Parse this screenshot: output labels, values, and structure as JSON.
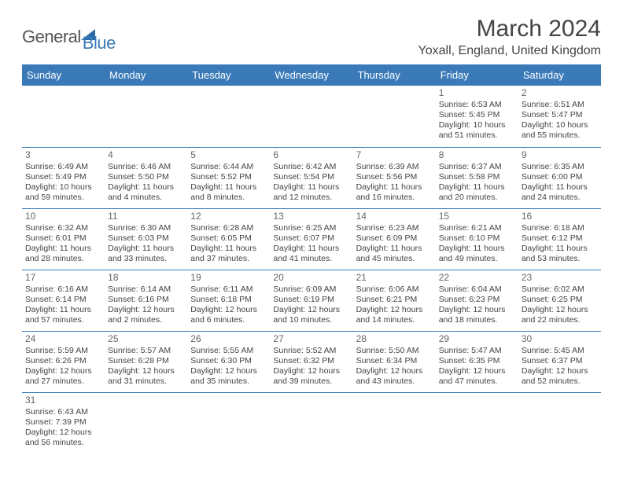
{
  "logo": {
    "part1": "General",
    "part2": "Blue"
  },
  "title": "March 2024",
  "location": "Yoxall, England, United Kingdom",
  "colors": {
    "header_bg": "#3a7ab8",
    "header_text": "#ffffff",
    "border": "#3a7ab8",
    "text": "#444444",
    "logo_gray": "#555555",
    "logo_blue": "#3a7ab8"
  },
  "daysOfWeek": [
    "Sunday",
    "Monday",
    "Tuesday",
    "Wednesday",
    "Thursday",
    "Friday",
    "Saturday"
  ],
  "grid": [
    [
      null,
      null,
      null,
      null,
      null,
      {
        "n": "1",
        "sr": "6:53 AM",
        "ss": "5:45 PM",
        "dh": "10",
        "dm": "51"
      },
      {
        "n": "2",
        "sr": "6:51 AM",
        "ss": "5:47 PM",
        "dh": "10",
        "dm": "55"
      }
    ],
    [
      {
        "n": "3",
        "sr": "6:49 AM",
        "ss": "5:49 PM",
        "dh": "10",
        "dm": "59"
      },
      {
        "n": "4",
        "sr": "6:46 AM",
        "ss": "5:50 PM",
        "dh": "11",
        "dm": "4"
      },
      {
        "n": "5",
        "sr": "6:44 AM",
        "ss": "5:52 PM",
        "dh": "11",
        "dm": "8"
      },
      {
        "n": "6",
        "sr": "6:42 AM",
        "ss": "5:54 PM",
        "dh": "11",
        "dm": "12"
      },
      {
        "n": "7",
        "sr": "6:39 AM",
        "ss": "5:56 PM",
        "dh": "11",
        "dm": "16"
      },
      {
        "n": "8",
        "sr": "6:37 AM",
        "ss": "5:58 PM",
        "dh": "11",
        "dm": "20"
      },
      {
        "n": "9",
        "sr": "6:35 AM",
        "ss": "6:00 PM",
        "dh": "11",
        "dm": "24"
      }
    ],
    [
      {
        "n": "10",
        "sr": "6:32 AM",
        "ss": "6:01 PM",
        "dh": "11",
        "dm": "28"
      },
      {
        "n": "11",
        "sr": "6:30 AM",
        "ss": "6:03 PM",
        "dh": "11",
        "dm": "33"
      },
      {
        "n": "12",
        "sr": "6:28 AM",
        "ss": "6:05 PM",
        "dh": "11",
        "dm": "37"
      },
      {
        "n": "13",
        "sr": "6:25 AM",
        "ss": "6:07 PM",
        "dh": "11",
        "dm": "41"
      },
      {
        "n": "14",
        "sr": "6:23 AM",
        "ss": "6:09 PM",
        "dh": "11",
        "dm": "45"
      },
      {
        "n": "15",
        "sr": "6:21 AM",
        "ss": "6:10 PM",
        "dh": "11",
        "dm": "49"
      },
      {
        "n": "16",
        "sr": "6:18 AM",
        "ss": "6:12 PM",
        "dh": "11",
        "dm": "53"
      }
    ],
    [
      {
        "n": "17",
        "sr": "6:16 AM",
        "ss": "6:14 PM",
        "dh": "11",
        "dm": "57"
      },
      {
        "n": "18",
        "sr": "6:14 AM",
        "ss": "6:16 PM",
        "dh": "12",
        "dm": "2"
      },
      {
        "n": "19",
        "sr": "6:11 AM",
        "ss": "6:18 PM",
        "dh": "12",
        "dm": "6"
      },
      {
        "n": "20",
        "sr": "6:09 AM",
        "ss": "6:19 PM",
        "dh": "12",
        "dm": "10"
      },
      {
        "n": "21",
        "sr": "6:06 AM",
        "ss": "6:21 PM",
        "dh": "12",
        "dm": "14"
      },
      {
        "n": "22",
        "sr": "6:04 AM",
        "ss": "6:23 PM",
        "dh": "12",
        "dm": "18"
      },
      {
        "n": "23",
        "sr": "6:02 AM",
        "ss": "6:25 PM",
        "dh": "12",
        "dm": "22"
      }
    ],
    [
      {
        "n": "24",
        "sr": "5:59 AM",
        "ss": "6:26 PM",
        "dh": "12",
        "dm": "27"
      },
      {
        "n": "25",
        "sr": "5:57 AM",
        "ss": "6:28 PM",
        "dh": "12",
        "dm": "31"
      },
      {
        "n": "26",
        "sr": "5:55 AM",
        "ss": "6:30 PM",
        "dh": "12",
        "dm": "35"
      },
      {
        "n": "27",
        "sr": "5:52 AM",
        "ss": "6:32 PM",
        "dh": "12",
        "dm": "39"
      },
      {
        "n": "28",
        "sr": "5:50 AM",
        "ss": "6:34 PM",
        "dh": "12",
        "dm": "43"
      },
      {
        "n": "29",
        "sr": "5:47 AM",
        "ss": "6:35 PM",
        "dh": "12",
        "dm": "47"
      },
      {
        "n": "30",
        "sr": "5:45 AM",
        "ss": "6:37 PM",
        "dh": "12",
        "dm": "52"
      }
    ],
    [
      {
        "n": "31",
        "sr": "6:43 AM",
        "ss": "7:39 PM",
        "dh": "12",
        "dm": "56"
      },
      null,
      null,
      null,
      null,
      null,
      null
    ]
  ],
  "labels": {
    "sunrise": "Sunrise: ",
    "sunset": "Sunset: ",
    "daylight_pre": "Daylight: ",
    "hours_word": " hours",
    "and_word": "and ",
    "minutes_word": " minutes."
  }
}
